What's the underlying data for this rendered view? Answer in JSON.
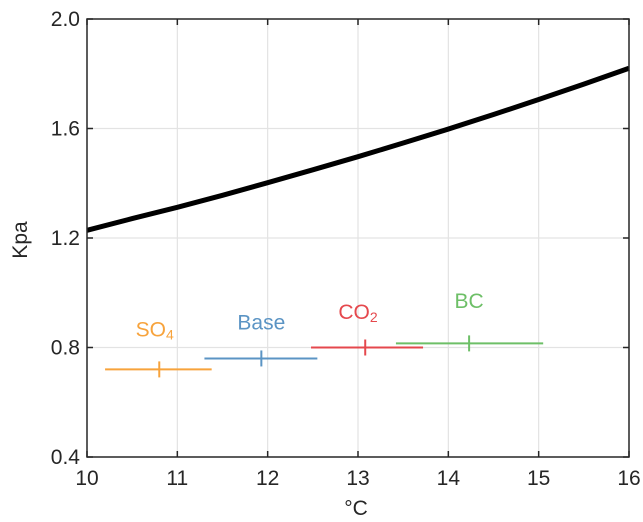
{
  "chart_data": {
    "type": "line",
    "title": "",
    "xlabel": "°C",
    "ylabel": "Kpa",
    "xlim": [
      10,
      16
    ],
    "ylim": [
      0.4,
      2.0
    ],
    "grid": true,
    "x_ticks": [
      10,
      11,
      12,
      13,
      14,
      15,
      16
    ],
    "x_tick_labels": [
      "10",
      "11",
      "12",
      "13",
      "14",
      "15",
      "16"
    ],
    "y_ticks": [
      0.4,
      0.8,
      1.2,
      1.6,
      2.0
    ],
    "y_tick_labels": [
      "0.4",
      "0.8",
      "1.2",
      "1.6",
      "2.0"
    ],
    "curve": {
      "color": "#000000",
      "x": [
        10,
        10.5,
        11,
        11.5,
        12,
        12.5,
        13,
        13.5,
        14,
        14.5,
        15,
        15.5,
        16
      ],
      "y": [
        1.228,
        1.271,
        1.312,
        1.356,
        1.402,
        1.449,
        1.497,
        1.547,
        1.598,
        1.651,
        1.706,
        1.762,
        1.82
      ]
    },
    "series": [
      {
        "name": "SO",
        "name_sub": "4",
        "color": "#F7A33C",
        "x": 10.8,
        "y": 0.72,
        "xerr": [
          10.2,
          11.38
        ],
        "label_pos": [
          10.75,
          0.84
        ]
      },
      {
        "name": "Base",
        "name_sub": "",
        "color": "#5B94C4",
        "x": 11.93,
        "y": 0.76,
        "xerr": [
          11.3,
          12.55
        ],
        "label_pos": [
          11.93,
          0.865
        ]
      },
      {
        "name": "CO",
        "name_sub": "2",
        "color": "#E5484D",
        "x": 13.08,
        "y": 0.8,
        "xerr": [
          12.48,
          13.72
        ],
        "label_pos": [
          13.0,
          0.905
        ]
      },
      {
        "name": "BC",
        "name_sub": "",
        "color": "#6DBF67",
        "x": 14.23,
        "y": 0.815,
        "xerr": [
          13.42,
          15.05
        ],
        "label_pos": [
          14.23,
          0.945
        ]
      }
    ]
  }
}
